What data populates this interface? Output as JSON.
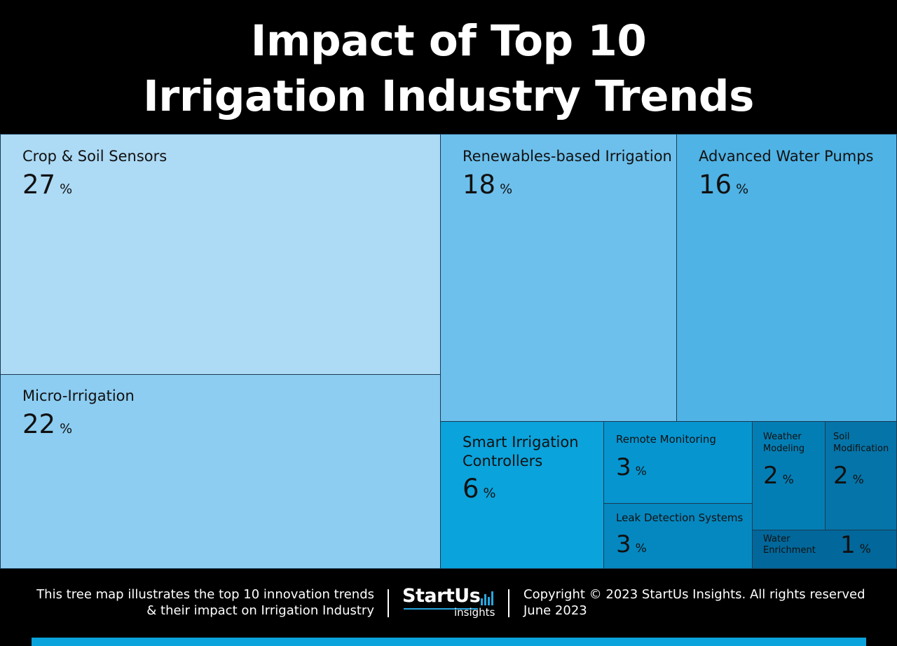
{
  "title": {
    "line1": "Impact of Top 10",
    "line2": "Irrigation Industry Trends"
  },
  "chart_data": {
    "type": "treemap",
    "items": [
      {
        "name": "Crop & Soil Sensors",
        "value": 27,
        "color": "#addaf5"
      },
      {
        "name": "Micro-Irrigation",
        "value": 22,
        "color": "#8dcdf1"
      },
      {
        "name": "Renewables-based Irrigation",
        "value": 18,
        "color": "#6dc0ec"
      },
      {
        "name": "Advanced Water Pumps",
        "value": 16,
        "color": "#4fb3e5"
      },
      {
        "name": "Smart Irrigation\nControllers",
        "value": 6,
        "color": "#0aa3dc"
      },
      {
        "name": "Remote Monitoring",
        "value": 3,
        "color": "#0695cf"
      },
      {
        "name": "Leak Detection Systems",
        "value": 3,
        "color": "#0588c0"
      },
      {
        "name": "Weather\nModeling",
        "value": 2,
        "color": "#037eb4"
      },
      {
        "name": "Soil\nModification",
        "value": 2,
        "color": "#0574a8"
      },
      {
        "name": "Water\nEnrichment",
        "value": 1,
        "color": "#02679a"
      }
    ],
    "unit": "%"
  },
  "footer": {
    "left_line1": "This tree map illustrates the top 10 innovation trends",
    "left_line2": "& their impact on Irrigation Industry",
    "logo_brand": "StartUs",
    "logo_sub": "insights",
    "right_line1": "Copyright © 2023 StartUs Insights. All rights reserved",
    "right_line2": "June 2023"
  }
}
